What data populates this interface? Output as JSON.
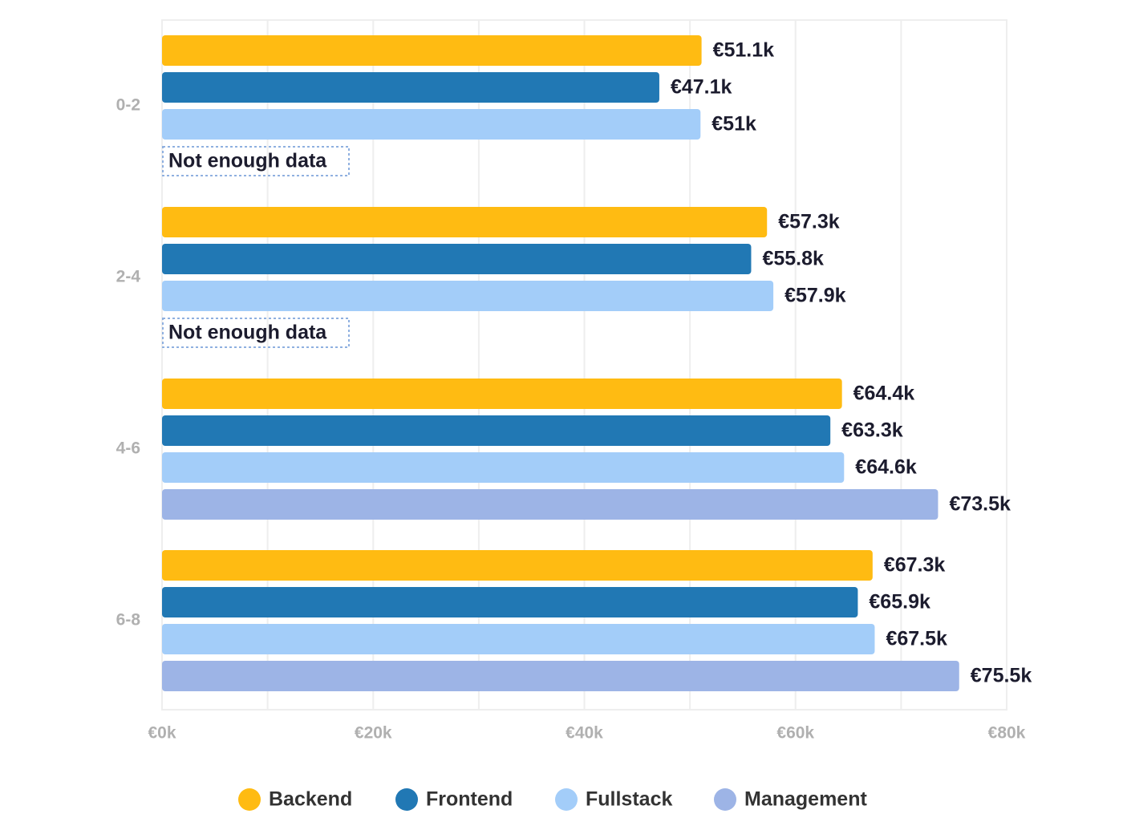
{
  "chart_data": {
    "type": "bar",
    "orientation": "horizontal",
    "categories": [
      "0-2",
      "2-4",
      "4-6",
      "6-8"
    ],
    "series": [
      {
        "name": "Backend",
        "color": "#ffbb12",
        "values": [
          51.1,
          57.3,
          64.4,
          67.3
        ],
        "value_labels": [
          "€51.1k",
          "€57.3k",
          "€64.4k",
          "€67.3k"
        ]
      },
      {
        "name": "Frontend",
        "color": "#2178b4",
        "values": [
          47.1,
          55.8,
          63.3,
          65.9
        ],
        "value_labels": [
          "€47.1k",
          "€55.8k",
          "€63.3k",
          "€65.9k"
        ]
      },
      {
        "name": "Fullstack",
        "color": "#a3cdf9",
        "values": [
          51,
          57.9,
          64.6,
          67.5
        ],
        "value_labels": [
          "€51k",
          "€57.9k",
          "€64.6k",
          "€67.5k"
        ]
      },
      {
        "name": "Management",
        "color": "#9db4e6",
        "values": [
          null,
          null,
          73.5,
          75.5
        ],
        "value_labels": [
          "Not enough data",
          "Not enough data",
          "€73.5k",
          "€75.5k"
        ]
      }
    ],
    "xlim": [
      0,
      80
    ],
    "xticks": [
      {
        "value": 0,
        "label": "€0k"
      },
      {
        "value": 20,
        "label": "€20k"
      },
      {
        "value": 40,
        "label": "€40k"
      },
      {
        "value": 60,
        "label": "€60k"
      },
      {
        "value": 80,
        "label": "€80k"
      }
    ],
    "minor_xticks": [
      10,
      30,
      50,
      70
    ],
    "grid": true,
    "legend": "bottom"
  }
}
